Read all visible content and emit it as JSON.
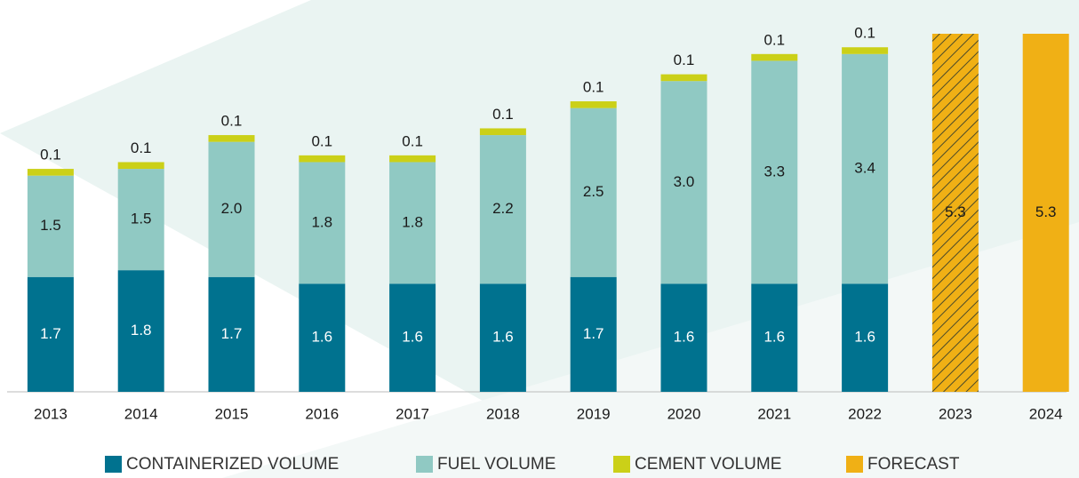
{
  "chart_data": {
    "type": "stacked_bar",
    "categories": [
      "2013",
      "2014",
      "2015",
      "2016",
      "2017",
      "2018",
      "2019",
      "2020",
      "2021",
      "2022",
      "2023",
      "2024"
    ],
    "series": [
      {
        "name": "CONTAINERIZED VOLUME",
        "color": "#00728f",
        "values": [
          1.7,
          1.8,
          1.7,
          1.6,
          1.6,
          1.6,
          1.7,
          1.6,
          1.6,
          1.6,
          null,
          null
        ],
        "value_labels": [
          "1.7",
          "1.8",
          "1.7",
          "1.6",
          "1.6",
          "1.6",
          "1.7",
          "1.6",
          "1.6",
          "1.6",
          null,
          null
        ]
      },
      {
        "name": "FUEL VOLUME",
        "color": "#90c9c3",
        "values": [
          1.5,
          1.5,
          2.0,
          1.8,
          1.8,
          2.2,
          2.5,
          3.0,
          3.3,
          3.4,
          null,
          null
        ],
        "value_labels": [
          "1.5",
          "1.5",
          "2.0",
          "1.8",
          "1.8",
          "2.2",
          "2.5",
          "3.0",
          "3.3",
          "3.4",
          null,
          null
        ]
      },
      {
        "name": "CEMENT VOLUME",
        "color": "#cbd018",
        "values": [
          0.1,
          0.1,
          0.1,
          0.1,
          0.1,
          0.1,
          0.1,
          0.1,
          0.1,
          0.1,
          null,
          null
        ],
        "value_labels": [
          "0.1",
          "0.1",
          "0.1",
          "0.1",
          "0.1",
          "0.1",
          "0.1",
          "0.1",
          "0.1",
          "0.1",
          null,
          null
        ]
      },
      {
        "name": "FORECAST",
        "color": "#f0b015",
        "values": [
          null,
          null,
          null,
          null,
          null,
          null,
          null,
          null,
          null,
          null,
          5.3,
          5.3
        ],
        "value_labels": [
          null,
          null,
          null,
          null,
          null,
          null,
          null,
          null,
          null,
          null,
          "5.3",
          "5.3"
        ],
        "hatched": [
          false,
          false,
          false,
          false,
          false,
          false,
          false,
          false,
          false,
          false,
          true,
          false
        ]
      }
    ]
  }
}
